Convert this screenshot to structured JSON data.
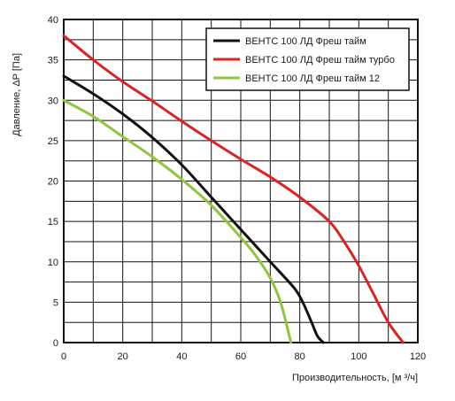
{
  "chart_data": {
    "type": "line",
    "xlabel": "Производительность, [м ³/ч]",
    "ylabel": "Давление, ΔP [Па]",
    "xlim": [
      0,
      120
    ],
    "ylim": [
      0,
      40
    ],
    "x_ticks": [
      "0",
      "20",
      "40",
      "60",
      "80",
      "100",
      "120"
    ],
    "y_ticks": [
      "0",
      "5",
      "10",
      "15",
      "20",
      "25",
      "30",
      "35",
      "40"
    ],
    "grid": true,
    "legend_position": "top-right",
    "series": [
      {
        "name": "ВЕНТС 100 ЛД Фреш тайм",
        "color": "#111111",
        "x": [
          0,
          10,
          20,
          30,
          40,
          50,
          60,
          70,
          78,
          81,
          84,
          86,
          88
        ],
        "y": [
          33,
          30.8,
          28.3,
          25.4,
          22,
          18,
          14,
          10,
          6.8,
          5,
          2.5,
          0.8,
          0
        ]
      },
      {
        "name": "ВЕНТС 100 ЛД Фреш тайм турбо",
        "color": "#dd2222",
        "x": [
          0,
          10,
          20,
          30,
          40,
          50,
          60,
          70,
          80,
          90,
          95,
          100,
          105,
          110,
          115
        ],
        "y": [
          38,
          35,
          32.3,
          29.9,
          27.4,
          25,
          22.7,
          20.5,
          18,
          15,
          12.5,
          9.5,
          6,
          2.5,
          0
        ]
      },
      {
        "name": "ВЕНТС 100 ЛД Фреш тайм 12",
        "color": "#8dc63f",
        "x": [
          0,
          10,
          20,
          30,
          40,
          50,
          60,
          65,
          70,
          73,
          75,
          76,
          77
        ],
        "y": [
          30,
          28,
          25.5,
          23,
          20.2,
          17,
          13,
          10.8,
          8,
          5.5,
          3,
          1.5,
          0
        ]
      }
    ]
  }
}
